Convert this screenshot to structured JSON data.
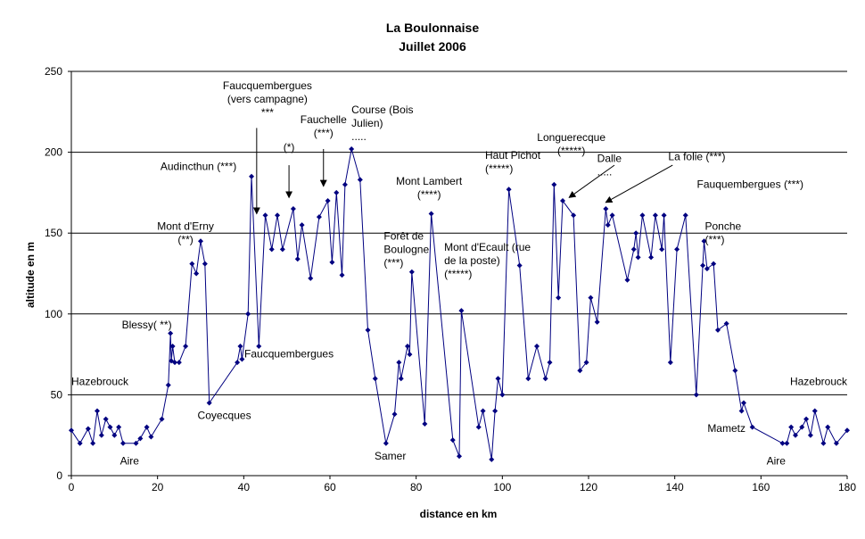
{
  "chart_data": {
    "type": "line",
    "title": "La Boulonnaise",
    "subtitle": "Juillet 2006",
    "xlabel": "distance en km",
    "ylabel": "altitude en m",
    "xlim": [
      0,
      180
    ],
    "ylim": [
      0,
      250
    ],
    "xticks": [
      0,
      20,
      40,
      60,
      80,
      100,
      120,
      140,
      160,
      180
    ],
    "yticks": [
      0,
      50,
      100,
      150,
      200,
      250
    ],
    "grid": "horizontal",
    "legend": "none",
    "marker": "diamond",
    "line_color": "#000080",
    "series": [
      {
        "points": [
          [
            0,
            28
          ],
          [
            2,
            20
          ],
          [
            3.9,
            29
          ],
          [
            5,
            20
          ],
          [
            6,
            40
          ],
          [
            7,
            25
          ],
          [
            8,
            35
          ],
          [
            9,
            30
          ],
          [
            10,
            25
          ],
          [
            11,
            30
          ],
          [
            12,
            20
          ],
          [
            15,
            20
          ],
          [
            16,
            23
          ],
          [
            17.5,
            30
          ],
          [
            18.5,
            24
          ],
          [
            21,
            35
          ],
          [
            22.5,
            56
          ],
          [
            23,
            88
          ],
          [
            23.2,
            71
          ],
          [
            23.5,
            80
          ],
          [
            24,
            70
          ],
          [
            25,
            70
          ],
          [
            26.5,
            80
          ],
          [
            28,
            131
          ],
          [
            29,
            125
          ],
          [
            30,
            145
          ],
          [
            31,
            131
          ],
          [
            32,
            45
          ],
          [
            38.5,
            70
          ],
          [
            39.2,
            80
          ],
          [
            39.6,
            72
          ],
          [
            41,
            100
          ],
          [
            41.8,
            185
          ],
          [
            43.5,
            80
          ],
          [
            45,
            161
          ],
          [
            46.5,
            140
          ],
          [
            47.8,
            161
          ],
          [
            49,
            140
          ],
          [
            51.5,
            165
          ],
          [
            52.5,
            134
          ],
          [
            53.5,
            155
          ],
          [
            55.5,
            122
          ],
          [
            57.5,
            160
          ],
          [
            59.5,
            170
          ],
          [
            60.5,
            132
          ],
          [
            61.5,
            175
          ],
          [
            62.8,
            124
          ],
          [
            63.5,
            180
          ],
          [
            65,
            202
          ],
          [
            67,
            183
          ],
          [
            68.8,
            90
          ],
          [
            70.5,
            60
          ],
          [
            73,
            20
          ],
          [
            75,
            38
          ],
          [
            76,
            70
          ],
          [
            76.5,
            60
          ],
          [
            78,
            80
          ],
          [
            78.5,
            75
          ],
          [
            79,
            126
          ],
          [
            82,
            32
          ],
          [
            83.5,
            162
          ],
          [
            88.5,
            22
          ],
          [
            90,
            12
          ],
          [
            90.5,
            102
          ],
          [
            94.5,
            30
          ],
          [
            95.5,
            40
          ],
          [
            97.5,
            10
          ],
          [
            98.3,
            40
          ],
          [
            99,
            60
          ],
          [
            100,
            50
          ],
          [
            101.5,
            177
          ],
          [
            104,
            130
          ],
          [
            106,
            60
          ],
          [
            108,
            80
          ],
          [
            110,
            60
          ],
          [
            111,
            70
          ],
          [
            112,
            180
          ],
          [
            113,
            110
          ],
          [
            114,
            170
          ],
          [
            116.5,
            161
          ],
          [
            118,
            65
          ],
          [
            119.5,
            70
          ],
          [
            120.5,
            110
          ],
          [
            122,
            95
          ],
          [
            124,
            165
          ],
          [
            124.5,
            155
          ],
          [
            125.5,
            161
          ],
          [
            129,
            121
          ],
          [
            130.5,
            140
          ],
          [
            131,
            150
          ],
          [
            131.5,
            135
          ],
          [
            132.5,
            161
          ],
          [
            134.5,
            135
          ],
          [
            135.5,
            161
          ],
          [
            137,
            140
          ],
          [
            137.5,
            161
          ],
          [
            139,
            70
          ],
          [
            140.5,
            140
          ],
          [
            142.5,
            161
          ],
          [
            145,
            50
          ],
          [
            146.5,
            130
          ],
          [
            146.8,
            145
          ],
          [
            147.5,
            128
          ],
          [
            149,
            131
          ],
          [
            150,
            90
          ],
          [
            152,
            94
          ],
          [
            154,
            65
          ],
          [
            155.5,
            40
          ],
          [
            156,
            45
          ],
          [
            158,
            30
          ],
          [
            165,
            20
          ],
          [
            166,
            20
          ],
          [
            167,
            30
          ],
          [
            168,
            25
          ],
          [
            169.5,
            30
          ],
          [
            170.5,
            35
          ],
          [
            171.5,
            25
          ],
          [
            172.5,
            40
          ],
          [
            174.5,
            20
          ],
          [
            175.5,
            30
          ],
          [
            177.5,
            20
          ],
          [
            180,
            28
          ]
        ]
      }
    ],
    "annotations": [
      {
        "lines": [
          "Hazebrouck"
        ],
        "x": 0,
        "y": 56,
        "anchor": "start"
      },
      {
        "lines": [
          "Aire"
        ],
        "x": 13.5,
        "y": 7,
        "anchor": "middle"
      },
      {
        "lines": [
          "Blessy( **)"
        ],
        "x": 17.5,
        "y": 91,
        "anchor": "middle"
      },
      {
        "lines": [
          "Mont d'Erny",
          "(**)"
        ],
        "x": 26.5,
        "y": 152,
        "anchor": "middle"
      },
      {
        "lines": [
          "Coyecques"
        ],
        "x": 35.5,
        "y": 35,
        "anchor": "middle"
      },
      {
        "lines": [
          "Audincthun (***)"
        ],
        "x": 29.5,
        "y": 189,
        "anchor": "middle"
      },
      {
        "lines": [
          "Faucquembergues"
        ],
        "x": 50.5,
        "y": 73,
        "anchor": "middle"
      },
      {
        "lines": [
          "Faucquembergues",
          "(vers campagne)",
          "***"
        ],
        "x": 45.5,
        "y": 239,
        "anchor": "middle"
      },
      {
        "lines": [
          "(*)"
        ],
        "x": 50.5,
        "y": 201,
        "anchor": "middle"
      },
      {
        "lines": [
          "Fauchelle",
          "(***)"
        ],
        "x": 58.5,
        "y": 218,
        "anchor": "middle"
      },
      {
        "lines": [
          "Course (Bois",
          "Julien)",
          "....."
        ],
        "x": 65,
        "y": 224,
        "anchor": "start"
      },
      {
        "lines": [
          "Forêt de",
          "Boulogne",
          "(***)"
        ],
        "x": 72.5,
        "y": 146,
        "anchor": "start"
      },
      {
        "lines": [
          "Samer"
        ],
        "x": 74,
        "y": 10,
        "anchor": "middle"
      },
      {
        "lines": [
          "Mont Lambert",
          "(****)"
        ],
        "x": 83,
        "y": 180,
        "anchor": "middle"
      },
      {
        "lines": [
          "Mont d'Ecault (rue",
          "de la poste)",
          "(*****)"
        ],
        "x": 86.5,
        "y": 139,
        "anchor": "start"
      },
      {
        "lines": [
          "Haut Pichot",
          "(*****)"
        ],
        "x": 96,
        "y": 196,
        "anchor": "start"
      },
      {
        "lines": [
          "Longuerecque",
          "(*****)"
        ],
        "x": 116,
        "y": 207,
        "anchor": "middle"
      },
      {
        "lines": [
          "Dalle",
          "....."
        ],
        "x": 122,
        "y": 194,
        "anchor": "start"
      },
      {
        "lines": [
          "La folie (***)"
        ],
        "x": 138.5,
        "y": 195,
        "anchor": "start"
      },
      {
        "lines": [
          "Fauquembergues (***)"
        ],
        "x": 157.5,
        "y": 178,
        "anchor": "middle"
      },
      {
        "lines": [
          "Ponche",
          "(***)"
        ],
        "x": 147,
        "y": 152,
        "anchor": "start"
      },
      {
        "lines": [
          "Mametz"
        ],
        "x": 152,
        "y": 27,
        "anchor": "middle"
      },
      {
        "lines": [
          "Aire"
        ],
        "x": 163.5,
        "y": 7,
        "anchor": "middle"
      },
      {
        "lines": [
          "Hazebrouck"
        ],
        "x": 180,
        "y": 56,
        "anchor": "end"
      }
    ],
    "arrows": [
      {
        "from": [
          43,
          215
        ],
        "to": [
          43,
          162
        ]
      },
      {
        "from": [
          50.5,
          192
        ],
        "to": [
          50.5,
          172
        ]
      },
      {
        "from": [
          58.5,
          202
        ],
        "to": [
          58.5,
          179
        ]
      },
      {
        "from": [
          126,
          192
        ],
        "to": [
          115.5,
          172
        ]
      },
      {
        "from": [
          139.5,
          192
        ],
        "to": [
          124,
          169
        ]
      }
    ]
  }
}
